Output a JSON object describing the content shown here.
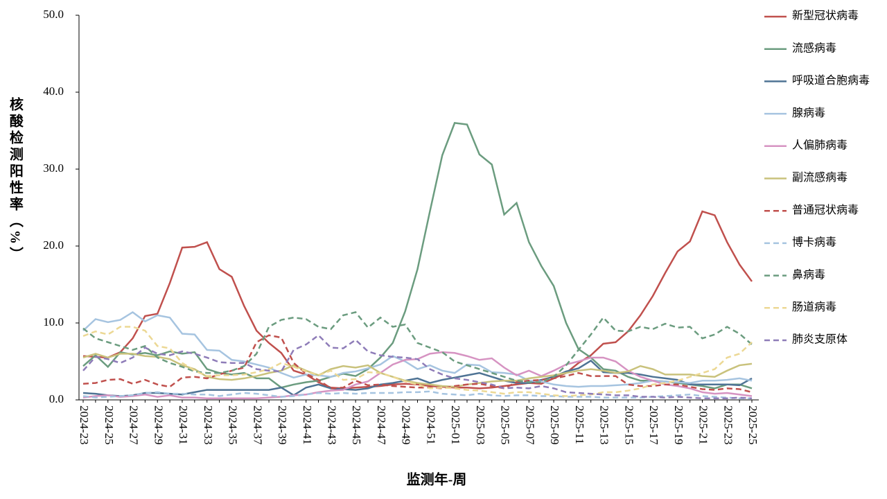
{
  "chart_data": {
    "type": "line",
    "x_label": "监测年-周",
    "y_label": "核酸检测阳性率（%）",
    "legend": "right",
    "categories": [
      "2024-23",
      null,
      "2024-25",
      null,
      "2024-27",
      null,
      "2024-29",
      null,
      "2024-31",
      null,
      "2024-33",
      null,
      "2024-35",
      null,
      "2024-37",
      null,
      "2024-39",
      null,
      "2024-41",
      null,
      "2024-43",
      null,
      "2024-45",
      null,
      "2024-47",
      null,
      "2024-49",
      null,
      "2024-51",
      null,
      "2025-01",
      null,
      "2025-03",
      null,
      "2025-05",
      null,
      "2025-07",
      null,
      "2025-09",
      null,
      "2025-11",
      null,
      "2025-13",
      null,
      "2025-15",
      null,
      "2025-17",
      null,
      "2025-19",
      null,
      "2025-21",
      null,
      "2025-23",
      null,
      "2025-25"
    ],
    "ylim": [
      0,
      50
    ],
    "yticks": [
      {
        "value": 0,
        "label": "0.0"
      },
      {
        "value": 10,
        "label": "10.0"
      },
      {
        "value": 20,
        "label": "20.0"
      },
      {
        "value": 30,
        "label": "30.0"
      },
      {
        "value": 40,
        "label": "40.0"
      },
      {
        "value": 50,
        "label": "50.0"
      }
    ],
    "series": [
      {
        "name": "新型冠状病毒",
        "color": "#c0504d",
        "dashed": false,
        "values": [
          5.7,
          5.6,
          5.5,
          6.2,
          8.0,
          10.9,
          11.2,
          15.2,
          19.8,
          19.9,
          20.5,
          17.0,
          16.0,
          12.2,
          9.0,
          7.4,
          6.1,
          3.8,
          3.3,
          2.3,
          1.6,
          1.5,
          1.6,
          1.7,
          1.8,
          2.0,
          2.1,
          2.0,
          1.8,
          1.7,
          1.6,
          1.6,
          1.5,
          1.6,
          1.8,
          2.0,
          2.2,
          2.1,
          2.8,
          3.5,
          4.8,
          5.8,
          7.3,
          7.5,
          8.9,
          11.0,
          13.5,
          16.5,
          19.3,
          20.6,
          24.5,
          24.0,
          20.5,
          17.6,
          15.4
        ]
      },
      {
        "name": "流感病毒",
        "color": "#6b9c7f",
        "dashed": false,
        "values": [
          4.4,
          5.8,
          4.3,
          6.2,
          5.9,
          6.1,
          5.8,
          6.3,
          6.0,
          6.2,
          4.0,
          3.5,
          3.3,
          3.5,
          2.8,
          2.8,
          1.6,
          2.0,
          2.3,
          2.5,
          3.0,
          3.4,
          3.1,
          4.0,
          5.5,
          7.4,
          11.5,
          17.0,
          24.5,
          31.8,
          36.0,
          35.8,
          31.9,
          30.6,
          24.1,
          25.6,
          20.5,
          17.4,
          14.8,
          10.0,
          6.6,
          5.5,
          4.0,
          3.8,
          3.0,
          2.5,
          2.5,
          2.4,
          2.2,
          2.0,
          1.8,
          1.5,
          2.0,
          2.0,
          1.5
        ]
      },
      {
        "name": "呼吸道合胞病毒",
        "color": "#4e7394",
        "dashed": false,
        "values": [
          0.9,
          0.8,
          0.6,
          0.5,
          0.6,
          0.9,
          0.9,
          0.8,
          0.7,
          1.0,
          1.3,
          1.3,
          1.3,
          1.3,
          1.3,
          1.3,
          1.6,
          0.6,
          1.6,
          2.0,
          1.5,
          1.4,
          1.3,
          1.5,
          2.0,
          2.2,
          2.5,
          2.8,
          2.2,
          2.6,
          2.9,
          3.2,
          3.5,
          3.0,
          2.5,
          2.2,
          2.2,
          2.6,
          3.0,
          3.7,
          4.1,
          5.1,
          3.6,
          3.5,
          3.5,
          3.3,
          3.0,
          2.8,
          2.6,
          2.0,
          2.0,
          2.0,
          2.0,
          1.9,
          2.8
        ]
      },
      {
        "name": "腺病毒",
        "color": "#a6c4e0",
        "dashed": false,
        "values": [
          9.0,
          10.5,
          10.1,
          10.4,
          11.4,
          10.2,
          11.0,
          10.7,
          8.6,
          8.5,
          6.5,
          6.4,
          5.2,
          5.0,
          4.6,
          4.2,
          3.5,
          2.9,
          3.3,
          3.2,
          3.0,
          3.5,
          3.7,
          4.1,
          4.6,
          5.7,
          5.0,
          4.0,
          4.5,
          3.8,
          3.5,
          4.6,
          4.5,
          3.6,
          3.5,
          3.3,
          2.5,
          2.4,
          2.0,
          1.8,
          1.7,
          1.8,
          1.8,
          1.9,
          2.0,
          2.2,
          2.5,
          2.4,
          2.3,
          2.2,
          2.5,
          2.5,
          2.6,
          2.8,
          2.5
        ]
      },
      {
        "name": "人偏肺病毒",
        "color": "#d693c2",
        "dashed": false,
        "values": [
          0.3,
          0.5,
          0.6,
          0.4,
          0.5,
          0.7,
          0.4,
          0.6,
          0.3,
          0.3,
          0.2,
          0.2,
          0.2,
          0.2,
          0.2,
          0.3,
          0.4,
          0.6,
          0.7,
          1.0,
          1.2,
          1.3,
          2.0,
          2.4,
          3.5,
          4.6,
          5.2,
          5.3,
          6.0,
          6.2,
          6.1,
          5.7,
          5.2,
          5.4,
          4.2,
          3.2,
          3.8,
          3.1,
          3.8,
          4.6,
          5.0,
          5.5,
          5.5,
          5.0,
          3.8,
          3.0,
          2.5,
          2.0,
          1.8,
          1.5,
          1.0,
          0.8,
          0.9,
          0.7,
          0.5
        ]
      },
      {
        "name": "副流感病毒",
        "color": "#c9c27c",
        "dashed": false,
        "values": [
          5.5,
          6.0,
          5.5,
          6.0,
          6.0,
          5.7,
          5.6,
          5.3,
          4.5,
          4.0,
          3.0,
          2.7,
          2.6,
          2.8,
          3.1,
          3.5,
          3.8,
          4.5,
          3.8,
          3.2,
          4.0,
          4.4,
          4.2,
          4.5,
          3.5,
          3.0,
          2.5,
          2.2,
          2.0,
          1.8,
          1.7,
          2.0,
          2.2,
          2.4,
          2.5,
          2.5,
          2.8,
          3.0,
          3.2,
          3.5,
          3.8,
          4.0,
          3.8,
          3.5,
          3.7,
          4.4,
          4.0,
          3.3,
          3.3,
          3.3,
          3.1,
          3.0,
          3.8,
          4.5,
          4.7
        ]
      },
      {
        "name": "普通冠状病毒",
        "color": "#c0504d",
        "dashed": true,
        "values": [
          2.1,
          2.2,
          2.6,
          2.7,
          2.1,
          2.6,
          2.0,
          1.7,
          2.9,
          3.0,
          2.8,
          3.3,
          3.8,
          4.2,
          7.5,
          8.4,
          8.1,
          4.8,
          3.4,
          2.6,
          1.5,
          1.6,
          2.5,
          1.9,
          2.0,
          1.8,
          1.7,
          1.6,
          1.6,
          1.5,
          1.8,
          2.0,
          2.1,
          1.8,
          1.5,
          2.3,
          2.5,
          2.6,
          2.8,
          3.1,
          3.5,
          3.1,
          3.1,
          3.1,
          2.0,
          1.8,
          1.8,
          2.0,
          2.0,
          1.7,
          1.4,
          1.3,
          1.5,
          1.4,
          1.0
        ]
      },
      {
        "name": "博卡病毒",
        "color": "#a6c4e0",
        "dashed": true,
        "values": [
          0.5,
          0.3,
          0.4,
          0.5,
          0.6,
          0.9,
          1.0,
          0.8,
          0.8,
          0.7,
          0.7,
          0.5,
          0.7,
          0.9,
          0.8,
          0.6,
          0.4,
          0.5,
          0.7,
          0.9,
          0.8,
          0.9,
          0.8,
          0.9,
          0.9,
          0.9,
          1.0,
          1.0,
          1.1,
          0.8,
          0.7,
          0.6,
          0.8,
          0.6,
          0.5,
          0.6,
          0.6,
          0.5,
          0.5,
          0.4,
          0.4,
          0.4,
          0.3,
          0.3,
          0.3,
          0.3,
          0.4,
          0.5,
          0.6,
          0.7,
          0.5,
          0.4,
          0.3,
          0.2,
          0.2
        ]
      },
      {
        "name": "鼻病毒",
        "color": "#6b9c7f",
        "dashed": true,
        "values": [
          9.3,
          8.0,
          7.5,
          7.0,
          6.5,
          7.0,
          5.5,
          4.8,
          4.3,
          3.7,
          3.5,
          3.5,
          3.8,
          4.4,
          6.0,
          9.5,
          10.4,
          10.7,
          10.5,
          9.5,
          9.2,
          11.0,
          11.4,
          9.4,
          10.7,
          9.5,
          9.8,
          7.4,
          6.8,
          6.2,
          5.0,
          4.5,
          4.0,
          3.5,
          3.0,
          2.5,
          2.3,
          2.3,
          3.0,
          4.5,
          6.5,
          8.5,
          10.7,
          9.0,
          8.9,
          9.5,
          9.2,
          9.9,
          9.4,
          9.5,
          8.0,
          8.5,
          9.5,
          8.6,
          7.2
        ]
      },
      {
        "name": "肠道病毒",
        "color": "#ecd894",
        "dashed": true,
        "values": [
          8.3,
          8.9,
          8.5,
          9.5,
          9.5,
          9.0,
          7.0,
          6.7,
          4.8,
          3.8,
          3.1,
          3.2,
          3.2,
          3.3,
          3.6,
          4.0,
          4.8,
          4.3,
          3.7,
          3.2,
          3.8,
          2.6,
          2.7,
          3.6,
          3.5,
          3.0,
          2.4,
          2.0,
          1.5,
          1.6,
          1.5,
          1.3,
          1.2,
          1.0,
          0.8,
          1.0,
          1.0,
          0.8,
          0.6,
          0.5,
          0.6,
          0.7,
          1.0,
          1.0,
          1.2,
          1.5,
          2.0,
          2.2,
          2.5,
          3.0,
          3.5,
          4.0,
          5.5,
          6.0,
          7.5
        ]
      },
      {
        "name": "肺炎支原体",
        "color": "#8e7cb8",
        "dashed": true,
        "values": [
          3.8,
          5.6,
          5.3,
          4.8,
          5.5,
          6.8,
          6.0,
          5.8,
          6.3,
          6.0,
          5.5,
          4.9,
          4.8,
          4.8,
          4.0,
          3.8,
          3.7,
          6.5,
          7.2,
          8.4,
          6.8,
          6.7,
          7.8,
          6.3,
          5.8,
          5.6,
          5.5,
          5.3,
          4.0,
          3.3,
          2.8,
          2.6,
          2.3,
          2.0,
          1.5,
          1.6,
          1.5,
          1.8,
          1.5,
          1.0,
          0.9,
          0.8,
          0.7,
          0.6,
          0.6,
          0.4,
          0.4,
          0.3,
          0.4,
          0.3,
          0.2,
          0.2,
          0.2,
          0.3,
          0.2
        ]
      }
    ]
  }
}
